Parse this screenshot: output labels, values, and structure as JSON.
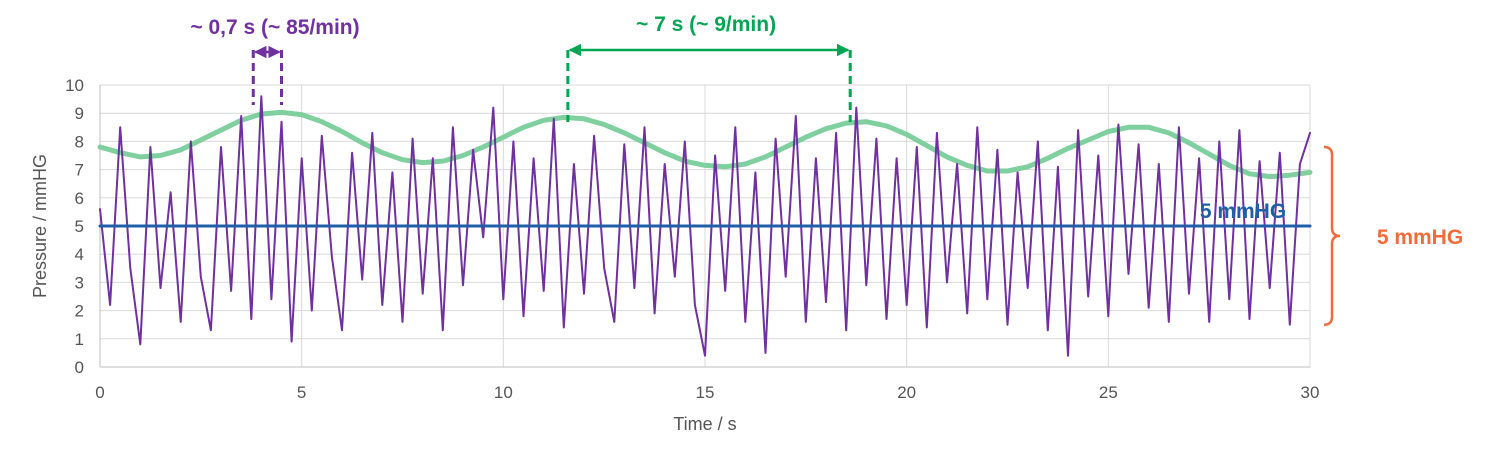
{
  "chart_data": {
    "type": "line",
    "xlabel": "Time / s",
    "ylabel": "Pressure / mmHG",
    "xlim": [
      0,
      30
    ],
    "ylim": [
      0,
      10
    ],
    "x_ticks": [
      "0",
      "5",
      "10",
      "15",
      "20",
      "25",
      "30"
    ],
    "y_ticks": [
      "0",
      "1",
      "2",
      "3",
      "4",
      "5",
      "6",
      "7",
      "8",
      "9",
      "10"
    ],
    "grid": true,
    "colors": {
      "pressure": "#7030a0",
      "respiratory": "#7fcf9f",
      "mean": "#1f5fa8",
      "amplitude": "#f26b3a",
      "cardiac_annotation": "#7030a0",
      "respiratory_annotation": "#00a651"
    },
    "series": [
      {
        "id": "respiratory",
        "x": [
          0,
          0.5,
          1,
          1.5,
          2,
          2.5,
          3,
          3.5,
          4,
          4.5,
          5,
          5.5,
          6,
          6.5,
          7,
          7.5,
          8,
          8.5,
          9,
          9.5,
          10,
          10.5,
          11,
          11.5,
          12,
          12.5,
          13,
          13.5,
          14,
          14.5,
          15,
          15.5,
          16,
          16.5,
          17,
          17.5,
          18,
          18.5,
          19,
          19.5,
          20,
          20.5,
          21,
          21.5,
          22,
          22.5,
          23,
          23.5,
          24,
          24.5,
          25,
          25.5,
          26,
          26.5,
          27,
          27.5,
          28,
          28.5,
          29,
          29.5,
          30
        ],
        "values": [
          7.8,
          7.6,
          7.45,
          7.5,
          7.7,
          8.05,
          8.4,
          8.75,
          8.97,
          9.03,
          8.95,
          8.7,
          8.35,
          7.95,
          7.6,
          7.35,
          7.25,
          7.3,
          7.5,
          7.8,
          8.15,
          8.5,
          8.75,
          8.85,
          8.8,
          8.6,
          8.3,
          7.95,
          7.6,
          7.3,
          7.15,
          7.1,
          7.2,
          7.45,
          7.8,
          8.15,
          8.45,
          8.65,
          8.7,
          8.55,
          8.25,
          7.85,
          7.45,
          7.15,
          6.95,
          6.95,
          7.1,
          7.4,
          7.75,
          8.05,
          8.35,
          8.5,
          8.5,
          8.3,
          7.95,
          7.55,
          7.15,
          6.85,
          6.75,
          6.8,
          6.9
        ]
      },
      {
        "id": "pressure",
        "x": [
          0,
          0.25,
          0.5,
          0.75,
          1,
          1.25,
          1.5,
          1.75,
          2,
          2.25,
          2.5,
          2.75,
          3,
          3.25,
          3.5,
          3.75,
          4,
          4.25,
          4.5,
          4.75,
          5,
          5.25,
          5.5,
          5.75,
          6,
          6.25,
          6.5,
          6.75,
          7,
          7.25,
          7.5,
          7.75,
          8,
          8.25,
          8.5,
          8.75,
          9,
          9.25,
          9.5,
          9.75,
          10,
          10.25,
          10.5,
          10.75,
          11,
          11.25,
          11.5,
          11.75,
          12,
          12.25,
          12.5,
          12.75,
          13,
          13.25,
          13.5,
          13.75,
          14,
          14.25,
          14.5,
          14.75,
          15,
          15.25,
          15.5,
          15.75,
          16,
          16.25,
          16.5,
          16.75,
          17,
          17.25,
          17.5,
          17.75,
          18,
          18.25,
          18.5,
          18.75,
          19,
          19.25,
          19.5,
          19.75,
          20,
          20.25,
          20.5,
          20.75,
          21,
          21.25,
          21.5,
          21.75,
          22,
          22.25,
          22.5,
          22.75,
          23,
          23.25,
          23.5,
          23.75,
          24,
          24.25,
          24.5,
          24.75,
          25,
          25.25,
          25.5,
          25.75,
          26,
          26.25,
          26.5,
          26.75,
          27,
          27.25,
          27.5,
          27.75,
          28,
          28.25,
          28.5,
          28.75,
          29,
          29.25,
          29.5,
          29.75,
          30
        ],
        "values": [
          5.6,
          2.2,
          8.5,
          3.5,
          0.8,
          7.8,
          2.8,
          6.2,
          1.6,
          8.0,
          3.2,
          1.3,
          7.8,
          2.7,
          8.9,
          1.7,
          9.6,
          2.4,
          8.7,
          0.9,
          7.4,
          2.0,
          8.2,
          3.9,
          1.3,
          7.6,
          3.1,
          8.3,
          2.2,
          6.9,
          1.6,
          8.1,
          2.6,
          7.4,
          1.3,
          8.5,
          2.9,
          7.7,
          4.6,
          9.2,
          2.4,
          8.0,
          1.8,
          7.4,
          2.7,
          8.8,
          1.4,
          7.2,
          2.6,
          8.2,
          3.5,
          1.6,
          7.9,
          2.8,
          8.5,
          1.9,
          7.2,
          3.2,
          8.0,
          2.2,
          0.4,
          7.5,
          2.7,
          8.5,
          1.6,
          6.9,
          0.5,
          8.1,
          3.2,
          8.9,
          1.6,
          7.4,
          2.3,
          8.3,
          1.3,
          9.2,
          2.9,
          8.1,
          1.7,
          7.4,
          2.2,
          7.8,
          1.4,
          8.3,
          3.0,
          7.2,
          1.9,
          8.5,
          2.4,
          7.7,
          1.5,
          6.9,
          2.8,
          8.0,
          1.3,
          7.1,
          0.4,
          8.4,
          2.5,
          7.5,
          1.8,
          8.6,
          3.3,
          7.9,
          2.1,
          7.2,
          1.6,
          8.5,
          2.6,
          7.4,
          1.6,
          8.0,
          2.4,
          8.4,
          1.7,
          7.3,
          2.8,
          7.6,
          1.5,
          7.2,
          8.3
        ]
      },
      {
        "id": "mean",
        "x": [
          0,
          30
        ],
        "values": [
          5,
          5
        ]
      }
    ],
    "annotations": {
      "mean_label": "5 mmHG",
      "amplitude_label": "5 mmHG",
      "cardiac_period_label": "~ 0,7 s (~ 85/min)",
      "respiratory_period_label": "~ 7 s (~ 9/min)",
      "cardiac_marker_x": [
        3.8,
        4.5
      ],
      "respiratory_marker_x": [
        11.6,
        18.6
      ],
      "amplitude_bracket_y": [
        1.5,
        7.8
      ]
    }
  }
}
